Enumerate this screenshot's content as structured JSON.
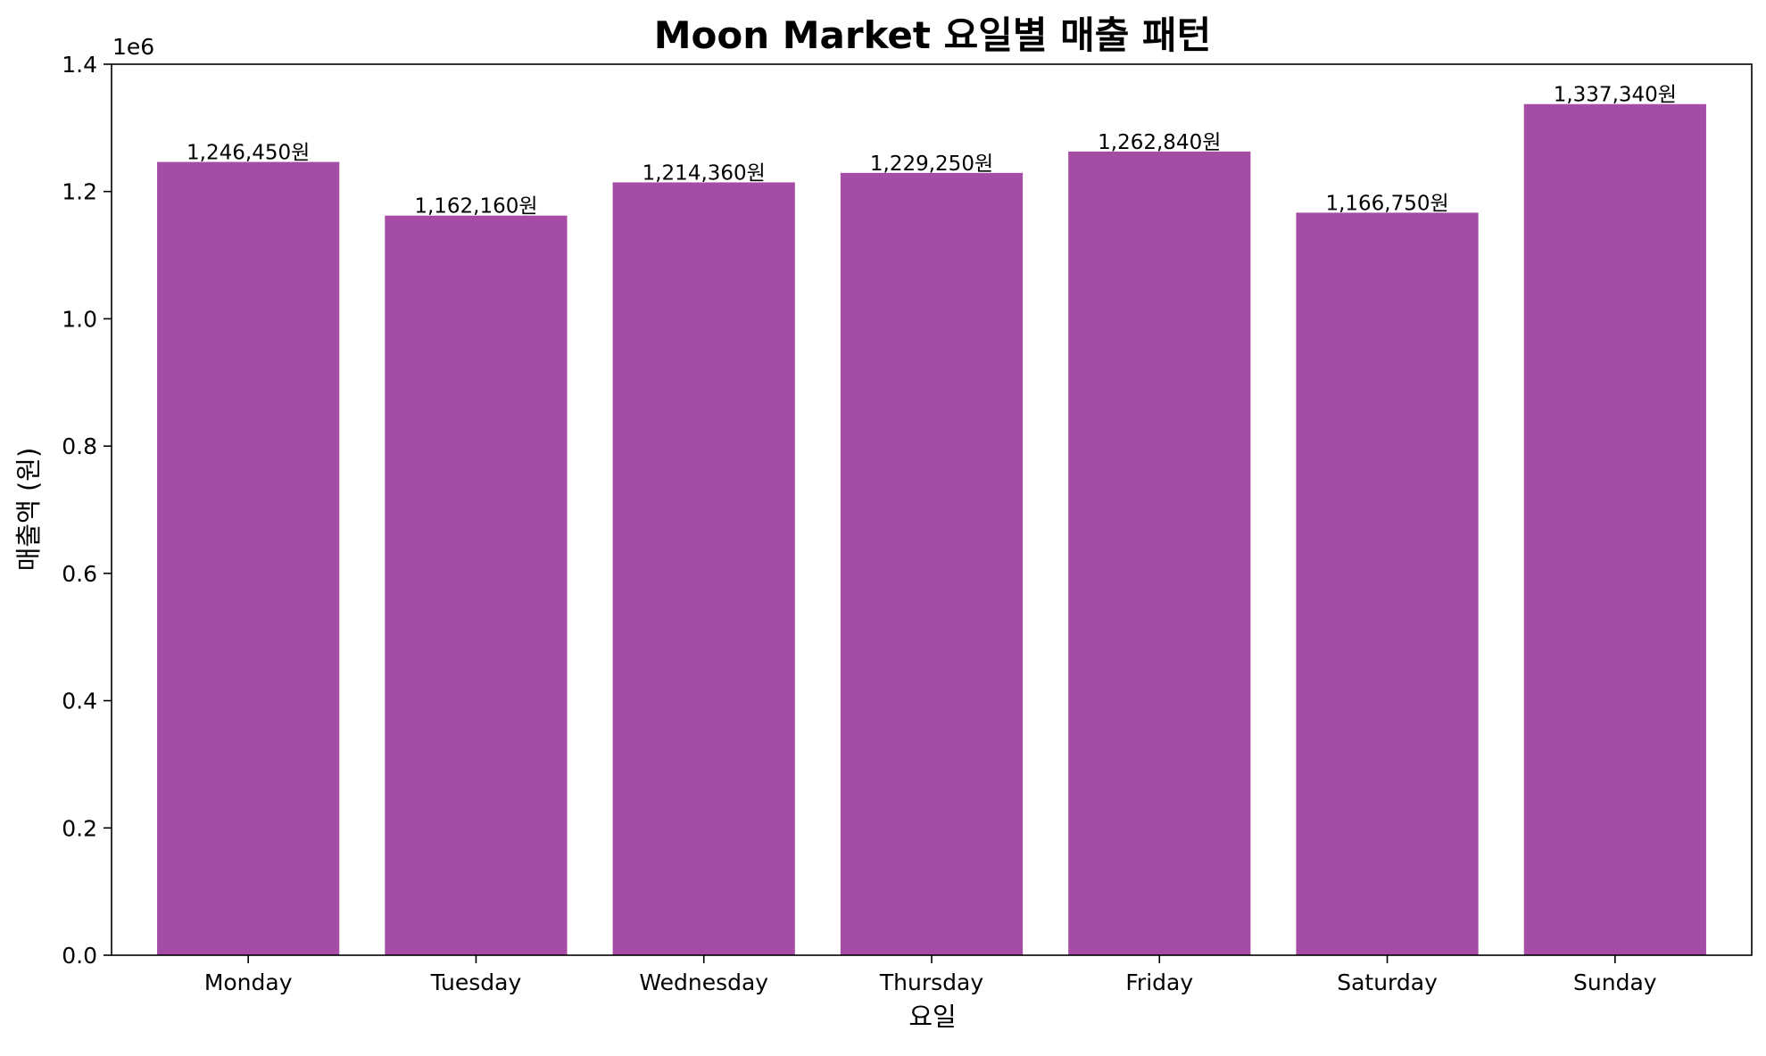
{
  "chart_data": {
    "type": "bar",
    "title": "Moon Market 요일별 매출 패턴",
    "xlabel": "요일",
    "ylabel": "매출액 (원)",
    "y_offset_label": "1e6",
    "categories": [
      "Monday",
      "Tuesday",
      "Wednesday",
      "Thursday",
      "Friday",
      "Saturday",
      "Sunday"
    ],
    "values": [
      1246450,
      1162160,
      1214360,
      1229250,
      1262840,
      1166750,
      1337340
    ],
    "value_labels": [
      "1,246,450원",
      "1,162,160원",
      "1,214,360원",
      "1,229,250원",
      "1,262,840원",
      "1,166,750원",
      "1,337,340원"
    ],
    "ylim": [
      0,
      1400000
    ],
    "yticks": [
      0,
      200000,
      400000,
      600000,
      800000,
      1000000,
      1200000,
      1400000
    ],
    "ytick_labels": [
      "0.0",
      "0.2",
      "0.4",
      "0.6",
      "0.8",
      "1.0",
      "1.2",
      "1.4"
    ],
    "bar_color": "#a54ca5",
    "grid": false,
    "legend": "none"
  }
}
